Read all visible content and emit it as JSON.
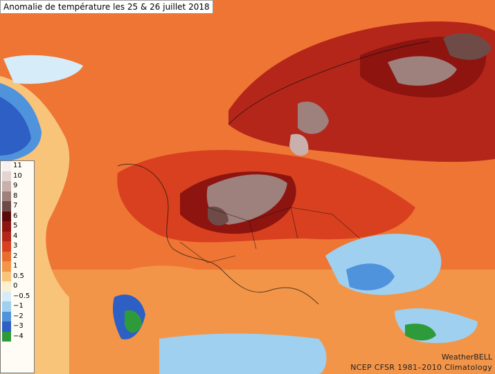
{
  "title": "Anomalie de température les 25 & 26 juillet 2018",
  "legend": [
    {
      "label": "11",
      "color": "#f7f0ef"
    },
    {
      "label": "10",
      "color": "#e3d4d2"
    },
    {
      "label": "9",
      "color": "#c9b0ad"
    },
    {
      "label": "8",
      "color": "#9e807c"
    },
    {
      "label": "7",
      "color": "#6e4b47"
    },
    {
      "label": "6",
      "color": "#5a0a0a"
    },
    {
      "label": "5",
      "color": "#8e1410"
    },
    {
      "label": "4",
      "color": "#b5261a"
    },
    {
      "label": "3",
      "color": "#d8401f"
    },
    {
      "label": "2",
      "color": "#ec6b2e"
    },
    {
      "label": "1",
      "color": "#f39548"
    },
    {
      "label": "0.5",
      "color": "#f8c47a"
    },
    {
      "label": "0",
      "color": "#fdf0d0"
    },
    {
      "label": "−0.5",
      "color": "#d6ecf8"
    },
    {
      "label": "−1",
      "color": "#9fd0ef"
    },
    {
      "label": "−2",
      "color": "#4f93dc"
    },
    {
      "label": "−3",
      "color": "#2d5fc4"
    },
    {
      "label": "−4",
      "color": "#2e9b3a"
    }
  ],
  "brand": "WeatherBELL",
  "credit": "NCEP  CFSR  1981–2010  Climatology"
}
